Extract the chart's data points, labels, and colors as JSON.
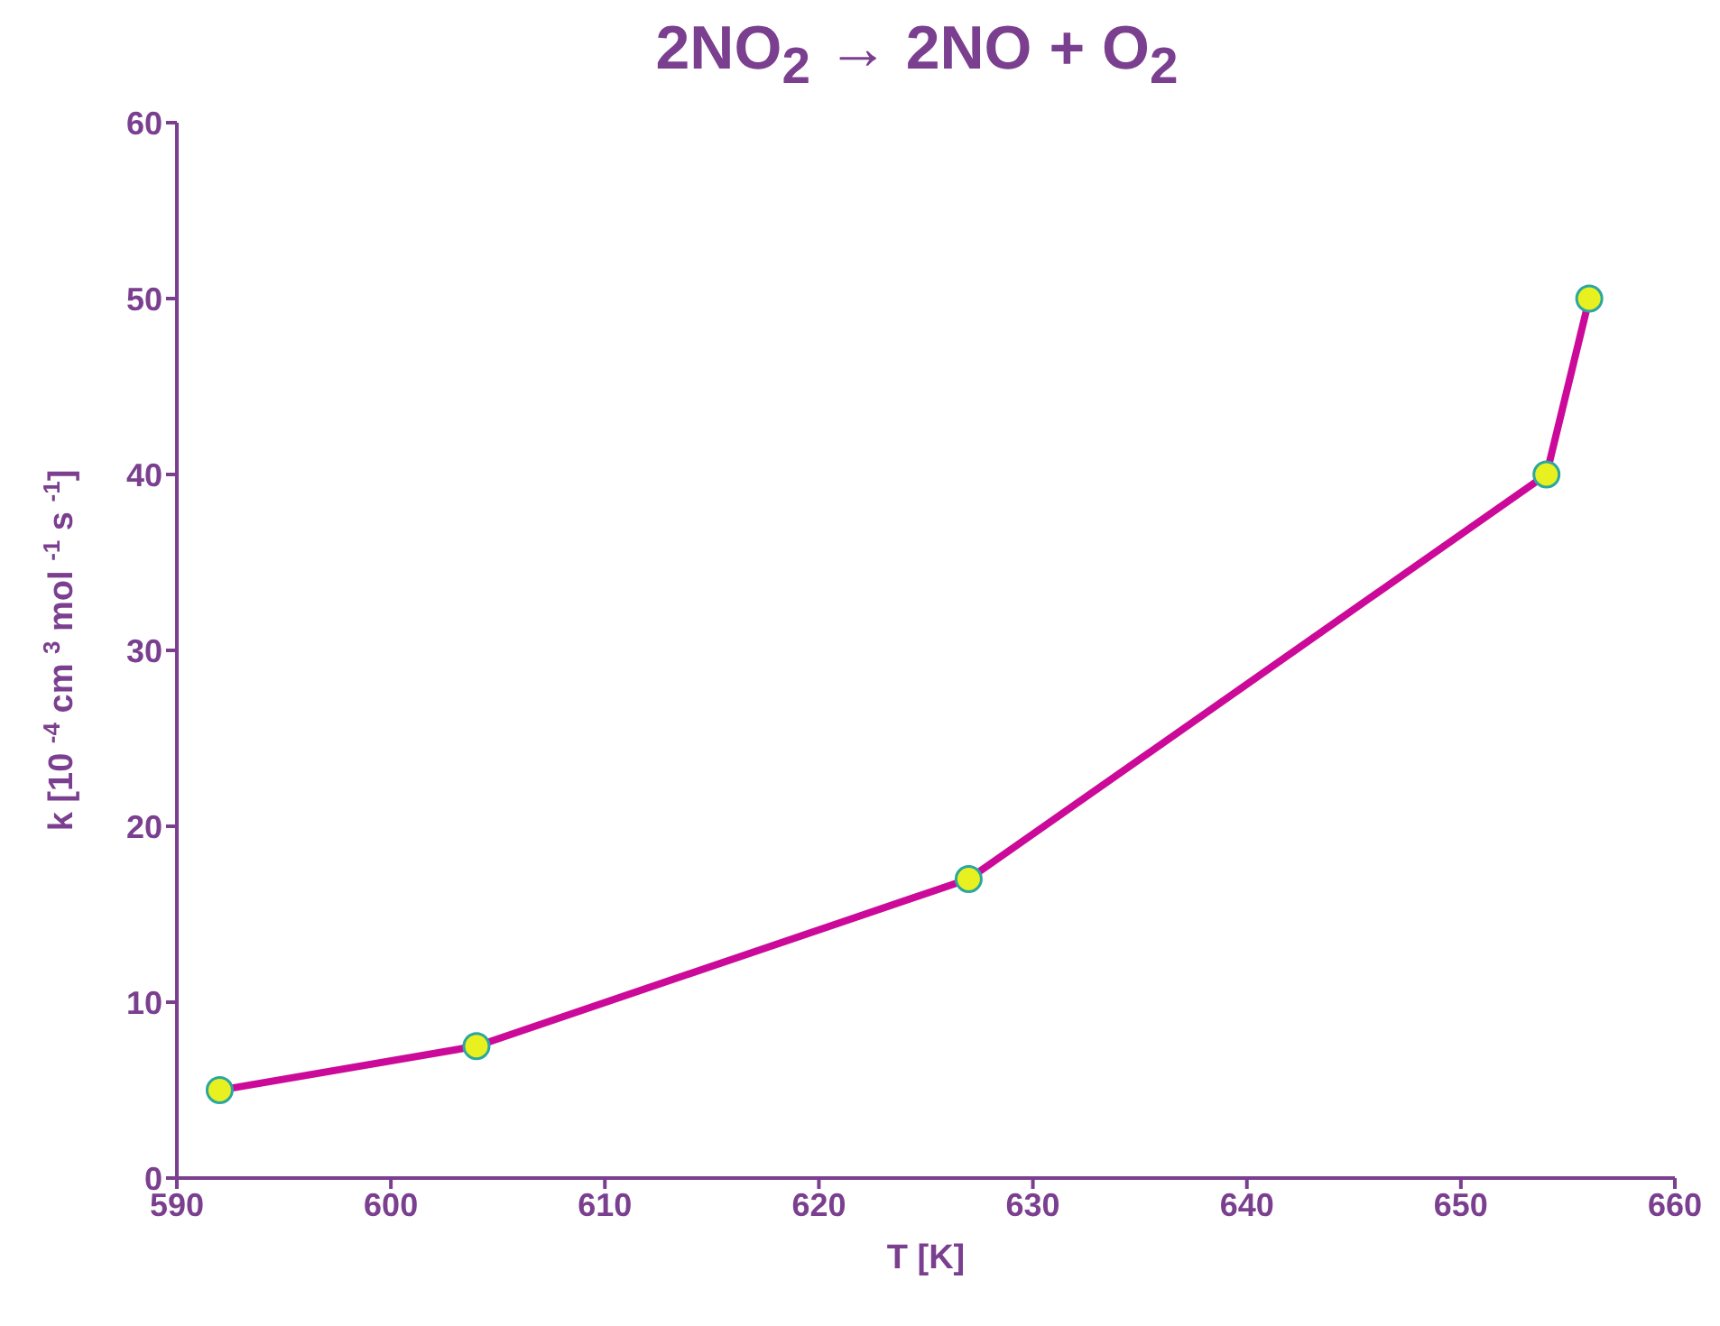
{
  "chart_data": {
    "type": "line",
    "title": "2NO$_{2}$ → 2NO + O$_{2}$",
    "xlabel": "T [K]",
    "ylabel": "k [10 $^{-4}$ cm $^{3}$ mol $^{-1}$ s $^{-1}$]",
    "x": [
      592,
      604,
      627,
      654,
      656
    ],
    "series": [
      {
        "color": "#cc0a99",
        "values": [
          5,
          7.5,
          17,
          40,
          50
        ]
      }
    ],
    "xlim": [
      590,
      660
    ],
    "xticks": [
      590,
      600,
      610,
      620,
      630,
      640,
      650,
      660
    ],
    "ylim": [
      0,
      60
    ],
    "yticks": [
      0,
      10,
      20,
      30,
      40,
      50,
      60
    ],
    "grid": false,
    "legend": false,
    "marker": "circle",
    "line_style": "solid"
  }
}
